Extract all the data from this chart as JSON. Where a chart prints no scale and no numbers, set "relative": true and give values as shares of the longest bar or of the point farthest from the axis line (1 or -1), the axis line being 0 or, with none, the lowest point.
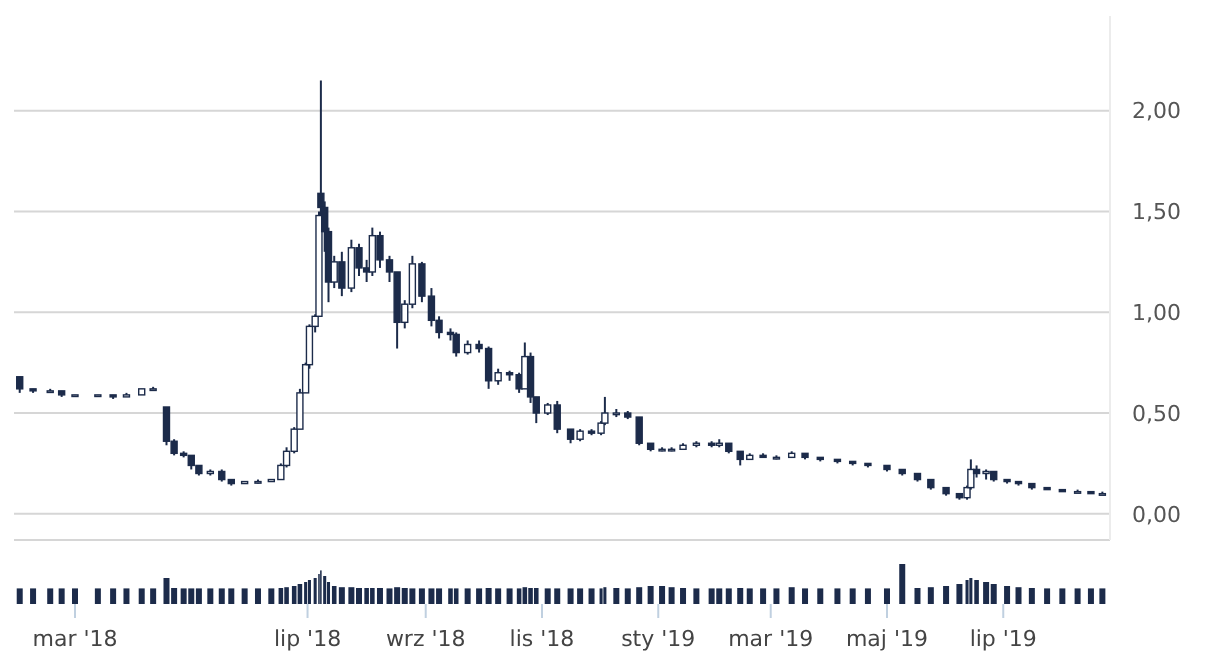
{
  "chart_data": [
    {
      "type": "candlestick",
      "color": "#1c2b4a",
      "grid": "y",
      "tick_labels": "y",
      "xlim": [
        "2018-01-28",
        "2019-08-26"
      ],
      "ylim": [
        -0.13,
        2.47
      ],
      "yticks": [
        {
          "value": 0,
          "label": "0,00"
        },
        {
          "value": 0.5,
          "label": "0,50"
        },
        {
          "value": 1,
          "label": "1,00"
        },
        {
          "value": 1.5,
          "label": "1,50"
        },
        {
          "value": 2,
          "label": "2,00"
        }
      ],
      "x": [
        "2018-01-31",
        "2018-02-07",
        "2018-02-16",
        "2018-02-22",
        "2018-03-01",
        "2018-03-13",
        "2018-03-21",
        "2018-03-28",
        "2018-04-05",
        "2018-04-11",
        "2018-04-18",
        "2018-04-22",
        "2018-04-27",
        "2018-05-01",
        "2018-05-05",
        "2018-05-11",
        "2018-05-17",
        "2018-05-22",
        "2018-05-29",
        "2018-06-05",
        "2018-06-12",
        "2018-06-17",
        "2018-06-20",
        "2018-06-24",
        "2018-06-27",
        "2018-06-30",
        "2018-07-02",
        "2018-07-05",
        "2018-07-07",
        "2018-07-08",
        "2018-07-10",
        "2018-07-12",
        "2018-07-15",
        "2018-07-19",
        "2018-07-24",
        "2018-07-28",
        "2018-08-01",
        "2018-08-04",
        "2018-08-08",
        "2018-08-13",
        "2018-08-17",
        "2018-08-21",
        "2018-08-25",
        "2018-08-30",
        "2018-09-04",
        "2018-09-08",
        "2018-09-14",
        "2018-09-17",
        "2018-09-23",
        "2018-09-29",
        "2018-10-04",
        "2018-10-09",
        "2018-10-15",
        "2018-10-20",
        "2018-10-23",
        "2018-10-26",
        "2018-10-29",
        "2018-11-04",
        "2018-11-09",
        "2018-11-16",
        "2018-11-21",
        "2018-11-27",
        "2018-12-02",
        "2018-12-04",
        "2018-12-10",
        "2018-12-16",
        "2018-12-22",
        "2018-12-28",
        "2019-01-03",
        "2019-01-08",
        "2019-01-14",
        "2019-01-21",
        "2019-01-29",
        "2019-02-02",
        "2019-02-07",
        "2019-02-13",
        "2019-02-18",
        "2019-02-25",
        "2019-03-04",
        "2019-03-12",
        "2019-03-19",
        "2019-03-27",
        "2019-04-05",
        "2019-04-13",
        "2019-04-21",
        "2019-05-01",
        "2019-05-09",
        "2019-05-17",
        "2019-05-24",
        "2019-06-01",
        "2019-06-08",
        "2019-06-12",
        "2019-06-14",
        "2019-06-17",
        "2019-06-22",
        "2019-06-26",
        "2019-07-03",
        "2019-07-09",
        "2019-07-16",
        "2019-07-24",
        "2019-08-01",
        "2019-08-09",
        "2019-08-16",
        "2019-08-22"
      ],
      "ohlc": [
        [
          0.68,
          0.68,
          0.6,
          0.62
        ],
        [
          0.62,
          0.62,
          0.6,
          0.61
        ],
        [
          0.61,
          0.62,
          0.6,
          0.61
        ],
        [
          0.61,
          0.61,
          0.58,
          0.59
        ],
        [
          0.59,
          0.59,
          0.58,
          0.59
        ],
        [
          0.59,
          0.59,
          0.58,
          0.59
        ],
        [
          0.59,
          0.59,
          0.57,
          0.58
        ],
        [
          0.58,
          0.6,
          0.58,
          0.59
        ],
        [
          0.59,
          0.62,
          0.59,
          0.62
        ],
        [
          0.62,
          0.63,
          0.61,
          0.62
        ],
        [
          0.53,
          0.53,
          0.34,
          0.36
        ],
        [
          0.36,
          0.37,
          0.29,
          0.3
        ],
        [
          0.3,
          0.31,
          0.28,
          0.29
        ],
        [
          0.29,
          0.29,
          0.22,
          0.24
        ],
        [
          0.24,
          0.24,
          0.19,
          0.2
        ],
        [
          0.2,
          0.22,
          0.19,
          0.21
        ],
        [
          0.21,
          0.22,
          0.16,
          0.17
        ],
        [
          0.17,
          0.17,
          0.14,
          0.15
        ],
        [
          0.15,
          0.16,
          0.15,
          0.16
        ],
        [
          0.16,
          0.17,
          0.15,
          0.16
        ],
        [
          0.16,
          0.17,
          0.16,
          0.17
        ],
        [
          0.17,
          0.25,
          0.17,
          0.24
        ],
        [
          0.24,
          0.33,
          0.23,
          0.31
        ],
        [
          0.31,
          0.43,
          0.3,
          0.42
        ],
        [
          0.42,
          0.62,
          0.42,
          0.6
        ],
        [
          0.6,
          0.75,
          0.6,
          0.74
        ],
        [
          0.74,
          0.94,
          0.72,
          0.93
        ],
        [
          0.93,
          0.99,
          0.9,
          0.98
        ],
        [
          0.98,
          1.5,
          0.98,
          1.48
        ],
        [
          1.59,
          2.15,
          1.48,
          1.52
        ],
        [
          1.52,
          1.55,
          1.3,
          1.4
        ],
        [
          1.4,
          1.42,
          1.05,
          1.15
        ],
        [
          1.15,
          1.28,
          1.12,
          1.25
        ],
        [
          1.25,
          1.3,
          1.08,
          1.12
        ],
        [
          1.12,
          1.36,
          1.1,
          1.32
        ],
        [
          1.32,
          1.34,
          1.18,
          1.22
        ],
        [
          1.22,
          1.26,
          1.15,
          1.2
        ],
        [
          1.2,
          1.42,
          1.18,
          1.38
        ],
        [
          1.38,
          1.4,
          1.22,
          1.26
        ],
        [
          1.26,
          1.28,
          1.15,
          1.2
        ],
        [
          1.2,
          1.2,
          0.82,
          0.95
        ],
        [
          0.95,
          1.06,
          0.92,
          1.04
        ],
        [
          1.04,
          1.28,
          1.02,
          1.24
        ],
        [
          1.24,
          1.25,
          1.05,
          1.08
        ],
        [
          1.08,
          1.12,
          0.93,
          0.96
        ],
        [
          0.96,
          0.98,
          0.87,
          0.9
        ],
        [
          0.9,
          0.92,
          0.86,
          0.89
        ],
        [
          0.89,
          0.9,
          0.78,
          0.8
        ],
        [
          0.8,
          0.86,
          0.79,
          0.84
        ],
        [
          0.84,
          0.86,
          0.8,
          0.82
        ],
        [
          0.82,
          0.83,
          0.62,
          0.66
        ],
        [
          0.66,
          0.72,
          0.64,
          0.7
        ],
        [
          0.7,
          0.71,
          0.66,
          0.69
        ],
        [
          0.69,
          0.7,
          0.6,
          0.62
        ],
        [
          0.62,
          0.85,
          0.62,
          0.78
        ],
        [
          0.78,
          0.8,
          0.55,
          0.58
        ],
        [
          0.58,
          0.58,
          0.45,
          0.5
        ],
        [
          0.5,
          0.55,
          0.49,
          0.54
        ],
        [
          0.54,
          0.56,
          0.4,
          0.42
        ],
        [
          0.42,
          0.42,
          0.35,
          0.37
        ],
        [
          0.37,
          0.42,
          0.36,
          0.41
        ],
        [
          0.41,
          0.42,
          0.39,
          0.4
        ],
        [
          0.4,
          0.46,
          0.39,
          0.45
        ],
        [
          0.45,
          0.58,
          0.44,
          0.5
        ],
        [
          0.5,
          0.52,
          0.48,
          0.5
        ],
        [
          0.5,
          0.51,
          0.47,
          0.48
        ],
        [
          0.48,
          0.48,
          0.34,
          0.35
        ],
        [
          0.35,
          0.35,
          0.31,
          0.32
        ],
        [
          0.32,
          0.33,
          0.31,
          0.32
        ],
        [
          0.32,
          0.33,
          0.31,
          0.32
        ],
        [
          0.32,
          0.35,
          0.32,
          0.34
        ],
        [
          0.34,
          0.36,
          0.33,
          0.35
        ],
        [
          0.35,
          0.36,
          0.33,
          0.34
        ],
        [
          0.34,
          0.37,
          0.33,
          0.35
        ],
        [
          0.35,
          0.35,
          0.3,
          0.31
        ],
        [
          0.31,
          0.31,
          0.24,
          0.27
        ],
        [
          0.27,
          0.3,
          0.27,
          0.29
        ],
        [
          0.29,
          0.3,
          0.28,
          0.28
        ],
        [
          0.28,
          0.29,
          0.27,
          0.28
        ],
        [
          0.28,
          0.31,
          0.28,
          0.3
        ],
        [
          0.3,
          0.3,
          0.27,
          0.28
        ],
        [
          0.28,
          0.28,
          0.26,
          0.27
        ],
        [
          0.27,
          0.27,
          0.25,
          0.26
        ],
        [
          0.26,
          0.26,
          0.24,
          0.25
        ],
        [
          0.25,
          0.25,
          0.23,
          0.24
        ],
        [
          0.24,
          0.24,
          0.21,
          0.22
        ],
        [
          0.22,
          0.22,
          0.19,
          0.2
        ],
        [
          0.2,
          0.2,
          0.16,
          0.17
        ],
        [
          0.17,
          0.17,
          0.12,
          0.13
        ],
        [
          0.13,
          0.13,
          0.09,
          0.1
        ],
        [
          0.1,
          0.1,
          0.07,
          0.08
        ],
        [
          0.08,
          0.14,
          0.07,
          0.13
        ],
        [
          0.13,
          0.27,
          0.12,
          0.22
        ],
        [
          0.22,
          0.24,
          0.18,
          0.2
        ],
        [
          0.2,
          0.22,
          0.17,
          0.21
        ],
        [
          0.21,
          0.21,
          0.16,
          0.17
        ],
        [
          0.17,
          0.17,
          0.15,
          0.16
        ],
        [
          0.16,
          0.16,
          0.14,
          0.15
        ],
        [
          0.15,
          0.15,
          0.12,
          0.13
        ],
        [
          0.13,
          0.13,
          0.12,
          0.12
        ],
        [
          0.12,
          0.12,
          0.11,
          0.11
        ],
        [
          0.11,
          0.12,
          0.11,
          0.11
        ],
        [
          0.11,
          0.11,
          0.1,
          0.1
        ],
        [
          0.1,
          0.11,
          0.1,
          0.1
        ]
      ]
    },
    {
      "type": "bar",
      "relative": true,
      "color": "#1c2b4a",
      "tick_labels": "x",
      "xlim": [
        "2018-01-28",
        "2019-08-26"
      ],
      "xticks": [
        {
          "value": "2018-03-01",
          "label": "mar '18"
        },
        {
          "value": "2018-07-01",
          "label": "lip '18"
        },
        {
          "value": "2018-09-01",
          "label": "wrz '18"
        },
        {
          "value": "2018-11-01",
          "label": "lis '18"
        },
        {
          "value": "2019-01-01",
          "label": "sty '19"
        },
        {
          "value": "2019-03-01",
          "label": "mar '19"
        },
        {
          "value": "2019-05-01",
          "label": "maj '19"
        },
        {
          "value": "2019-07-01",
          "label": "lip '19"
        }
      ],
      "x": [
        "2018-01-31",
        "2018-02-07",
        "2018-02-16",
        "2018-02-22",
        "2018-03-01",
        "2018-03-13",
        "2018-03-21",
        "2018-03-28",
        "2018-04-05",
        "2018-04-11",
        "2018-04-18",
        "2018-04-22",
        "2018-04-27",
        "2018-05-01",
        "2018-05-05",
        "2018-05-11",
        "2018-05-17",
        "2018-05-22",
        "2018-05-29",
        "2018-06-05",
        "2018-06-12",
        "2018-06-17",
        "2018-06-20",
        "2018-06-24",
        "2018-06-27",
        "2018-06-30",
        "2018-07-02",
        "2018-07-05",
        "2018-07-07",
        "2018-07-08",
        "2018-07-10",
        "2018-07-12",
        "2018-07-15",
        "2018-07-19",
        "2018-07-24",
        "2018-07-28",
        "2018-08-01",
        "2018-08-04",
        "2018-08-08",
        "2018-08-13",
        "2018-08-17",
        "2018-08-21",
        "2018-08-25",
        "2018-08-30",
        "2018-09-04",
        "2018-09-08",
        "2018-09-14",
        "2018-09-17",
        "2018-09-23",
        "2018-09-29",
        "2018-10-04",
        "2018-10-09",
        "2018-10-15",
        "2018-10-20",
        "2018-10-23",
        "2018-10-26",
        "2018-10-29",
        "2018-11-04",
        "2018-11-09",
        "2018-11-16",
        "2018-11-21",
        "2018-11-27",
        "2018-12-02",
        "2018-12-04",
        "2018-12-10",
        "2018-12-16",
        "2018-12-22",
        "2018-12-28",
        "2019-01-03",
        "2019-01-08",
        "2019-01-14",
        "2019-01-21",
        "2019-01-29",
        "2019-02-02",
        "2019-02-07",
        "2019-02-13",
        "2019-02-18",
        "2019-02-25",
        "2019-03-04",
        "2019-03-12",
        "2019-03-19",
        "2019-03-27",
        "2019-04-05",
        "2019-04-13",
        "2019-04-21",
        "2019-05-01",
        "2019-05-09",
        "2019-05-17",
        "2019-05-24",
        "2019-06-01",
        "2019-06-08",
        "2019-06-12",
        "2019-06-14",
        "2019-06-17",
        "2019-06-22",
        "2019-06-26",
        "2019-07-03",
        "2019-07-09",
        "2019-07-16",
        "2019-07-24",
        "2019-08-01",
        "2019-08-09",
        "2019-08-16",
        "2019-08-22"
      ],
      "values": [
        0.39,
        0.39,
        0.39,
        0.39,
        0.39,
        0.39,
        0.39,
        0.39,
        0.39,
        0.39,
        0.65,
        0.4,
        0.39,
        0.39,
        0.39,
        0.39,
        0.39,
        0.39,
        0.39,
        0.39,
        0.39,
        0.4,
        0.42,
        0.45,
        0.5,
        0.55,
        0.6,
        0.65,
        0.75,
        0.84,
        0.7,
        0.55,
        0.45,
        0.42,
        0.42,
        0.4,
        0.4,
        0.4,
        0.4,
        0.39,
        0.42,
        0.4,
        0.39,
        0.39,
        0.39,
        0.39,
        0.39,
        0.39,
        0.39,
        0.39,
        0.4,
        0.39,
        0.39,
        0.39,
        0.42,
        0.4,
        0.4,
        0.39,
        0.39,
        0.39,
        0.39,
        0.39,
        0.39,
        0.42,
        0.4,
        0.39,
        0.42,
        0.45,
        0.45,
        0.42,
        0.4,
        0.39,
        0.39,
        0.39,
        0.39,
        0.4,
        0.39,
        0.39,
        0.39,
        0.42,
        0.39,
        0.39,
        0.39,
        0.39,
        0.39,
        0.39,
        1,
        0.4,
        0.42,
        0.45,
        0.5,
        0.6,
        0.65,
        0.6,
        0.55,
        0.5,
        0.45,
        0.42,
        0.4,
        0.39,
        0.39,
        0.39,
        0.39,
        0.39
      ]
    }
  ]
}
